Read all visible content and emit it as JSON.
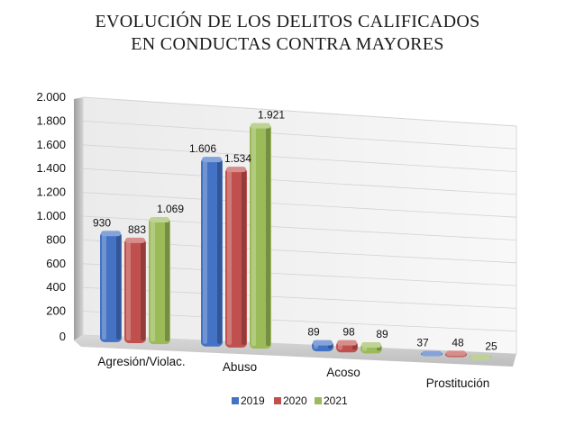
{
  "chart_data": {
    "type": "bar",
    "title_lines": [
      "EVOLUCIÓN DE LOS DELITOS CALIFICADOS",
      "EN CONDUCTAS CONTRA MAYORES"
    ],
    "categories": [
      "Agresión/Violac.",
      "Abuso",
      "Acoso",
      "Prostitución"
    ],
    "series": [
      {
        "name": "2019",
        "values": [
          930,
          1606,
          89,
          37
        ],
        "color": "#4472C4"
      },
      {
        "name": "2020",
        "values": [
          883,
          1534,
          98,
          48
        ],
        "color": "#C0504D"
      },
      {
        "name": "2021",
        "values": [
          1069,
          1921,
          89,
          25
        ],
        "color": "#9BBB59"
      }
    ],
    "value_labels": [
      [
        "930",
        "1.606",
        "89",
        "37"
      ],
      [
        "883",
        "1.534",
        "98",
        "48"
      ],
      [
        "1.069",
        "1.921",
        "89",
        "25"
      ]
    ],
    "y_ticks": [
      0,
      200,
      400,
      600,
      800,
      1000,
      1200,
      1400,
      1600,
      1800,
      2000
    ],
    "y_tick_labels": [
      "0",
      "200",
      "400",
      "600",
      "800",
      "1.000",
      "1.200",
      "1.400",
      "1.600",
      "1.800",
      "2.000"
    ],
    "ylim": [
      0,
      2000
    ],
    "xlabel": "",
    "ylabel": "",
    "legend_position": "bottom",
    "grid": true,
    "style": "3d-perspective"
  }
}
